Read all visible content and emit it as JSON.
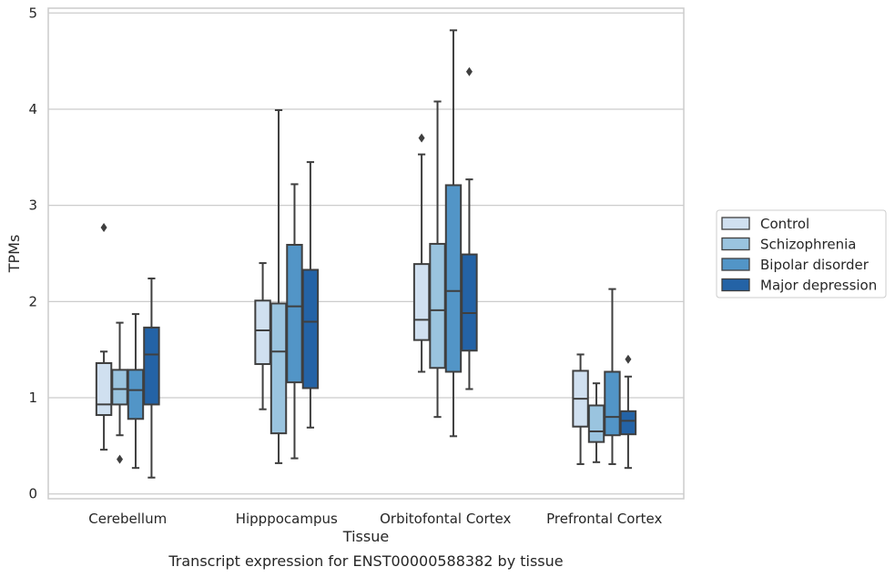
{
  "chart_data": {
    "type": "box",
    "caption": "Transcript expression for ENST00000588382 by tissue",
    "xlabel": "Tissue",
    "ylabel": "TPMs",
    "ylim": [
      -0.05,
      5.05
    ],
    "yticks": [
      0,
      1,
      2,
      3,
      4,
      5
    ],
    "grid": true,
    "legend_position": "right",
    "categories": [
      "Cerebellum",
      "Hipppocampus",
      "Orbitofontal Cortex",
      "Prefrontal Cortex"
    ],
    "series": [
      {
        "name": "Control",
        "color": "#d0e0f0",
        "boxes": [
          {
            "whisker_low": 0.46,
            "q1": 0.82,
            "median": 0.93,
            "q3": 1.36,
            "whisker_high": 1.48,
            "outliers": [
              2.77
            ]
          },
          {
            "whisker_low": 0.88,
            "q1": 1.35,
            "median": 1.7,
            "q3": 2.01,
            "whisker_high": 2.4,
            "outliers": []
          },
          {
            "whisker_low": 1.27,
            "q1": 1.6,
            "median": 1.81,
            "q3": 2.39,
            "whisker_high": 3.53,
            "outliers": [
              3.7
            ]
          },
          {
            "whisker_low": 0.31,
            "q1": 0.7,
            "median": 0.99,
            "q3": 1.28,
            "whisker_high": 1.45,
            "outliers": []
          }
        ]
      },
      {
        "name": "Schizophrenia",
        "color": "#9ac4df",
        "boxes": [
          {
            "whisker_low": 0.61,
            "q1": 0.93,
            "median": 1.09,
            "q3": 1.29,
            "whisker_high": 1.78,
            "outliers": [
              0.36
            ]
          },
          {
            "whisker_low": 0.32,
            "q1": 0.63,
            "median": 1.48,
            "q3": 1.98,
            "whisker_high": 3.99,
            "outliers": []
          },
          {
            "whisker_low": 0.8,
            "q1": 1.31,
            "median": 1.91,
            "q3": 2.6,
            "whisker_high": 4.08,
            "outliers": []
          },
          {
            "whisker_low": 0.33,
            "q1": 0.54,
            "median": 0.65,
            "q3": 0.92,
            "whisker_high": 1.15,
            "outliers": []
          }
        ]
      },
      {
        "name": "Bipolar disorder",
        "color": "#5295c7",
        "boxes": [
          {
            "whisker_low": 0.27,
            "q1": 0.78,
            "median": 1.08,
            "q3": 1.29,
            "whisker_high": 1.87,
            "outliers": []
          },
          {
            "whisker_low": 0.37,
            "q1": 1.16,
            "median": 1.95,
            "q3": 2.59,
            "whisker_high": 3.22,
            "outliers": []
          },
          {
            "whisker_low": 0.6,
            "q1": 1.27,
            "median": 2.11,
            "q3": 3.21,
            "whisker_high": 4.82,
            "outliers": []
          },
          {
            "whisker_low": 0.31,
            "q1": 0.61,
            "median": 0.8,
            "q3": 1.27,
            "whisker_high": 2.13,
            "outliers": []
          }
        ]
      },
      {
        "name": "Major depression",
        "color": "#2463a6",
        "boxes": [
          {
            "whisker_low": 0.17,
            "q1": 0.93,
            "median": 1.45,
            "q3": 1.73,
            "whisker_high": 2.24,
            "outliers": []
          },
          {
            "whisker_low": 0.69,
            "q1": 1.1,
            "median": 1.79,
            "q3": 2.33,
            "whisker_high": 3.45,
            "outliers": []
          },
          {
            "whisker_low": 1.09,
            "q1": 1.49,
            "median": 1.88,
            "q3": 2.49,
            "whisker_high": 3.27,
            "outliers": [
              4.39
            ]
          },
          {
            "whisker_low": 0.27,
            "q1": 0.62,
            "median": 0.76,
            "q3": 0.86,
            "whisker_high": 1.22,
            "outliers": [
              1.4
            ]
          }
        ]
      }
    ]
  }
}
